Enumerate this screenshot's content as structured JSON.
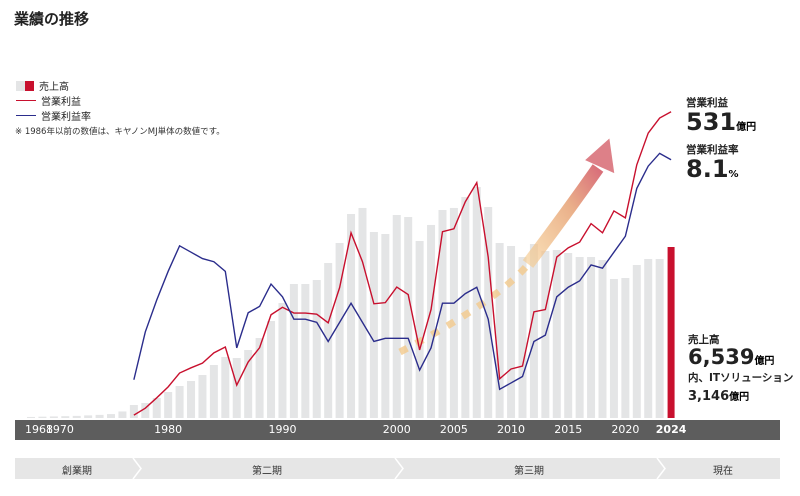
{
  "title": "業績の推移",
  "legend": {
    "sales": "売上高",
    "profit": "営業利益",
    "margin": "営業利益率"
  },
  "note": "※ 1986年以前の数値は、キヤノンMJ単体の数値です。",
  "callouts": {
    "profit_label": "営業利益",
    "profit_value": "531",
    "profit_unit": "億円",
    "margin_label": "営業利益率",
    "margin_value": "8.1",
    "margin_unit": "%",
    "sales_label": "売上高",
    "sales_value": "6,539",
    "sales_unit": "億円",
    "it_label": "内、ITソリューション",
    "it_value": "3,146",
    "it_unit": "億円"
  },
  "timeline_labels": [
    "1968",
    "1970",
    "1980",
    "1990",
    "2000",
    "2005",
    "2010",
    "2015",
    "2020",
    "2024"
  ],
  "phases": [
    "創業期",
    "第二期",
    "第三期",
    "現在"
  ],
  "colors": {
    "sales": "#e4e5e6",
    "sales_latest": "#c8102e",
    "profit": "#c8102e",
    "margin": "#2b2d8c",
    "timeline": "#5d5d5d"
  },
  "chart_data": {
    "type": "bar",
    "title": "業績の推移",
    "x_start": 1968,
    "x_end": 2024,
    "series": [
      {
        "name": "売上高",
        "type": "bar",
        "unit": "億円",
        "ylim": [
          0,
          12925
        ],
        "start": 1968,
        "values": [
          40,
          50,
          60,
          70,
          80,
          100,
          120,
          150,
          250,
          497,
          574,
          765,
          994,
          1224,
          1415,
          1644,
          2027,
          2332,
          2294,
          2600,
          3059,
          3709,
          4397,
          5124,
          5124,
          5277,
          5927,
          6692,
          7801,
          8031,
          7113,
          7036,
          7763,
          7686,
          6769,
          7381,
          7954,
          8031,
          8451,
          8833,
          8069,
          6692,
          6577,
          6157,
          6654,
          6386,
          6424,
          6310,
          6157,
          6157,
          6042,
          5315,
          5353,
          5851,
          6080,
          6080,
          6539
        ]
      },
      {
        "name": "営業利益",
        "type": "line",
        "unit": "億円",
        "ylim": [
          0,
          586
        ],
        "start": 1977,
        "values": [
          5,
          17,
          35,
          54,
          78,
          87,
          95,
          113,
          123,
          57,
          97,
          122,
          179,
          192,
          182,
          182,
          180,
          165,
          226,
          321,
          271,
          198,
          200,
          227,
          214,
          118,
          188,
          323,
          328,
          375,
          408,
          279,
          68,
          85,
          90,
          184,
          188,
          279,
          295,
          305,
          337,
          321,
          359,
          347,
          439,
          494,
          520,
          531
        ]
      },
      {
        "name": "営業利益率",
        "type": "line",
        "unit": "%",
        "ylim": [
          0,
          10.6
        ],
        "start": 1977,
        "values": [
          1.2,
          2.7,
          3.7,
          4.6,
          5.4,
          5.2,
          5.0,
          4.9,
          4.6,
          2.2,
          3.3,
          3.5,
          4.2,
          3.8,
          3.1,
          3.1,
          3.0,
          2.4,
          3.0,
          3.6,
          3.0,
          2.4,
          2.5,
          2.5,
          2.5,
          1.5,
          2.2,
          3.6,
          3.6,
          3.9,
          4.1,
          3.1,
          0.9,
          1.1,
          1.3,
          2.4,
          2.6,
          3.8,
          4.1,
          4.3,
          4.8,
          4.7,
          5.2,
          5.7,
          7.2,
          7.9,
          8.3,
          8.1
        ]
      }
    ],
    "legend_position": "top-left",
    "grid": false
  }
}
